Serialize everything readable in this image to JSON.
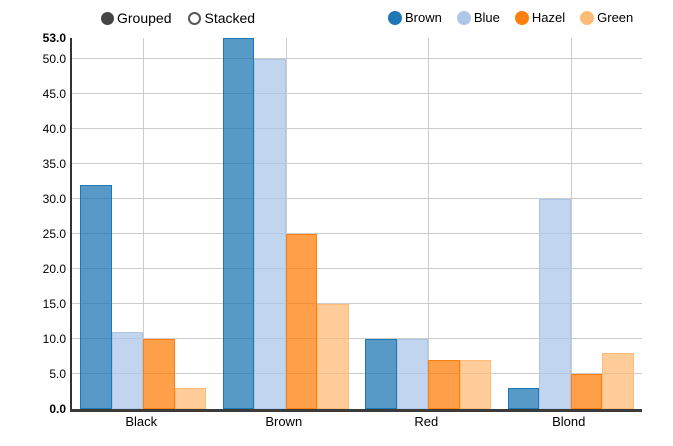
{
  "controls": {
    "options": [
      {
        "label": "Grouped",
        "selected": true
      },
      {
        "label": "Stacked",
        "selected": false
      }
    ],
    "selected_color": "#454545"
  },
  "chart_data": {
    "type": "bar",
    "mode": "grouped",
    "categories": [
      "Black",
      "Brown",
      "Red",
      "Blond"
    ],
    "series": [
      {
        "name": "Brown",
        "color": "#1f77b4",
        "fill": "rgba(31,119,180,0.75)",
        "values": [
          32,
          53,
          10,
          3
        ]
      },
      {
        "name": "Blue",
        "color": "#aec7e8",
        "fill": "rgba(174,199,232,0.75)",
        "values": [
          11,
          50,
          10,
          30
        ]
      },
      {
        "name": "Hazel",
        "color": "#ff7f0e",
        "fill": "rgba(255,127,14,0.75)",
        "values": [
          10,
          25,
          7,
          5
        ]
      },
      {
        "name": "Green",
        "color": "#ffbb78",
        "fill": "rgba(255,187,120,0.75)",
        "values": [
          3,
          15,
          7,
          8
        ]
      }
    ],
    "title": "",
    "xlabel": "",
    "ylabel": "",
    "ylim": [
      0,
      53
    ],
    "y_ticks": [
      0,
      5,
      10,
      15,
      20,
      25,
      30,
      35,
      40,
      45,
      50,
      53
    ],
    "y_tick_bold": [
      0,
      53
    ],
    "y_tick_decimals": 1,
    "grid": true,
    "legend_position": "top-right",
    "gridline_color": "#cccccc",
    "axis_line_color": "#333333"
  }
}
